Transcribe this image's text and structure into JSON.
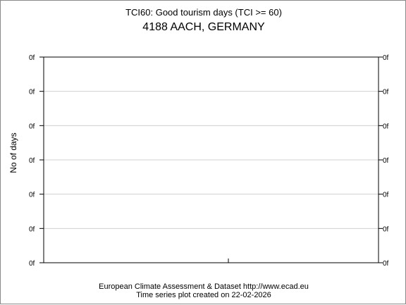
{
  "chart_data": {
    "type": "line",
    "title": "TCI60: Good tourism days (TCI >= 60)",
    "subtitle": "4188 AACH, GERMANY",
    "ylabel": "No of days",
    "xlabel": "",
    "y_tick_labels": [
      "0f",
      "0f",
      "0f",
      "0f",
      "0f",
      "0f",
      "0f"
    ],
    "x": [],
    "series": [],
    "grid": true
  },
  "footer": {
    "line1": "European Climate Assessment & Dataset  http://www.ecad.eu",
    "line2": "Time series plot created on 22-02-2026"
  }
}
